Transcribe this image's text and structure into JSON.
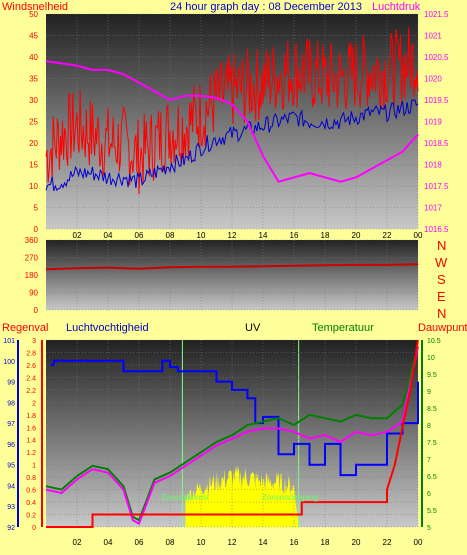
{
  "header": {
    "title": "24 hour graph day : 08 December 2013",
    "left_label": "Windsnelheid",
    "right_label": "Luchtdruk"
  },
  "wind_dir_letters": [
    "N",
    "W",
    "S",
    "E",
    "N"
  ],
  "lower_labels": {
    "rain": "Regenval",
    "humidity": "Luchtvochtigheid",
    "uv": "UV",
    "temp": "Temperatuur",
    "dew": "Dauwpunt",
    "sunrise": "Zonsopkomst",
    "sunset": "Zonsondergang"
  },
  "colors": {
    "background": "#ffff99",
    "wind_gust": "#ff0000",
    "wind_avg": "#0000cc",
    "pressure": "#ff00ff",
    "title": "#0000cc",
    "left_axis": "#ff0000",
    "humidity": "#0000ff",
    "uv": "#ffff00",
    "temperature": "#008000",
    "dewpoint": "#ff00ff",
    "rain": "#ff0000",
    "sun_marker": "#80ff80"
  },
  "chart_data": [
    {
      "type": "line",
      "name": "wind-pressure",
      "x_ticks": [
        "02",
        "04",
        "06",
        "08",
        "10",
        "12",
        "14",
        "16",
        "18",
        "20",
        "22",
        "00"
      ],
      "x_range": [
        0,
        24
      ],
      "y_left": {
        "label": "Windsnelheid",
        "ylim": [
          0,
          50
        ],
        "ticks": [
          0,
          5,
          10,
          15,
          20,
          25,
          30,
          35,
          40,
          45,
          50
        ]
      },
      "y_right": {
        "label": "Luchtdruk",
        "ylim": [
          1016.5,
          1021.5
        ],
        "ticks": [
          "1016.5",
          "1017",
          "1017.5",
          "1018",
          "1018.5",
          "1019",
          "1019.5",
          "1020",
          "1020.5",
          "1021",
          "1021.5"
        ]
      },
      "series": [
        {
          "name": "Windsnelheid",
          "axis": "left",
          "x": [
            0,
            1,
            2,
            3,
            4,
            5,
            6,
            7,
            8,
            9,
            10,
            11,
            12,
            13,
            14,
            15,
            16,
            17,
            18,
            19,
            20,
            21,
            22,
            23,
            24
          ],
          "y": [
            17,
            22,
            24,
            22,
            20,
            20,
            17,
            20,
            23,
            24,
            27,
            30,
            32,
            33,
            34,
            36,
            37,
            36,
            35,
            35,
            36,
            37,
            37,
            38,
            40
          ]
        },
        {
          "name": "Gemiddeld",
          "axis": "left",
          "x": [
            0,
            1,
            2,
            3,
            4,
            5,
            6,
            7,
            8,
            9,
            10,
            11,
            12,
            13,
            14,
            15,
            16,
            17,
            18,
            19,
            20,
            21,
            22,
            23,
            24
          ],
          "y": [
            10,
            11,
            13,
            13,
            12,
            12,
            11,
            13,
            15,
            16,
            19,
            21,
            22,
            23,
            24,
            25,
            26,
            25,
            25,
            25,
            26,
            27,
            27,
            28,
            29
          ]
        },
        {
          "name": "Luchtdruk",
          "axis": "right",
          "x": [
            0,
            1,
            2,
            3,
            4,
            5,
            6,
            7,
            8,
            9,
            10,
            11,
            12,
            13,
            14,
            15,
            16,
            17,
            18,
            19,
            20,
            21,
            22,
            23,
            24
          ],
          "y": [
            1020.4,
            1020.35,
            1020.3,
            1020.2,
            1020.2,
            1020.1,
            1019.9,
            1019.7,
            1019.5,
            1019.6,
            1019.6,
            1019.55,
            1019.4,
            1019.0,
            1018.2,
            1017.6,
            1017.7,
            1017.8,
            1017.7,
            1017.6,
            1017.7,
            1017.9,
            1018.1,
            1018.3,
            1018.7
          ]
        }
      ]
    },
    {
      "type": "line",
      "name": "wind-direction",
      "x_range": [
        0,
        24
      ],
      "ylim": [
        0,
        360
      ],
      "y_ticks": [
        0,
        90,
        180,
        270,
        360
      ],
      "series": [
        {
          "name": "Windrichting",
          "x": [
            0,
            2,
            4,
            6,
            8,
            10,
            12,
            14,
            16,
            18,
            20,
            22,
            24
          ],
          "y": [
            210,
            215,
            218,
            212,
            220,
            222,
            222,
            225,
            228,
            230,
            232,
            232,
            235
          ]
        }
      ]
    },
    {
      "type": "line",
      "name": "rain-humidity-uv-temp",
      "x_range": [
        0,
        24
      ],
      "y_rain": {
        "label": "Regenval",
        "ylim": [
          0,
          3
        ],
        "ticks": [
          "0",
          "0.2",
          "0.4",
          "0.6",
          "0.8",
          "1",
          "1.2",
          "1.4",
          "1.6",
          "1.8",
          "2",
          "2.2",
          "2.4",
          "2.6",
          "2.8",
          "3"
        ]
      },
      "y_humidity": {
        "label": "Luchtvochtigheid",
        "ylim": [
          92,
          101
        ],
        "ticks": [
          92,
          93,
          94,
          95,
          96,
          97,
          98,
          99,
          100,
          101
        ]
      },
      "y_temp": {
        "label": "Temperatuur",
        "ylim": [
          5,
          10.5
        ],
        "ticks": [
          "5",
          "5.5",
          "6",
          "6.5",
          "7",
          "7.5",
          "8",
          "8.5",
          "9",
          "9.5",
          "10",
          "10.5"
        ]
      },
      "sunrise": 8.8,
      "sunset": 16.3,
      "series": [
        {
          "name": "Luchtvochtigheid",
          "x": [
            0.3,
            0.5,
            1,
            2,
            3,
            4,
            5,
            6,
            7,
            7.5,
            8,
            8.5,
            9,
            10,
            11,
            12,
            13,
            13.5,
            14,
            15,
            16,
            17,
            18,
            19,
            20,
            21,
            22,
            23,
            24
          ],
          "y": [
            99.8,
            100,
            100,
            100,
            100,
            100,
            99.5,
            99.5,
            99.5,
            100,
            99.7,
            99.5,
            99.5,
            99.5,
            99,
            98.6,
            98.2,
            97,
            97.3,
            95.5,
            96,
            95,
            96,
            94.5,
            95,
            95,
            96.5,
            97,
            99
          ]
        },
        {
          "name": "UV",
          "x": [
            9,
            10,
            11,
            12,
            13,
            14,
            15,
            16,
            16.3
          ],
          "y": [
            0.6,
            0.8,
            0.9,
            1.0,
            1.0,
            0.9,
            0.9,
            0.8,
            0
          ]
        },
        {
          "name": "Temperatuur",
          "x": [
            0,
            1,
            2,
            3,
            4,
            5,
            5.6,
            6,
            6.5,
            7,
            8,
            9,
            10,
            11,
            12,
            13,
            14,
            15,
            16,
            17,
            18,
            19,
            20,
            21,
            22,
            23,
            24
          ],
          "y": [
            6.2,
            6.1,
            6.5,
            6.8,
            6.7,
            6.2,
            5.3,
            5.2,
            5.8,
            6.4,
            6.6,
            6.9,
            7.2,
            7.5,
            7.7,
            8.0,
            8.1,
            8.2,
            8.0,
            8.3,
            8.2,
            8.1,
            8.3,
            8.2,
            8.2,
            8.6,
            10.3
          ]
        },
        {
          "name": "Dauwpunt",
          "x": [
            0,
            1,
            2,
            3,
            4,
            5,
            5.6,
            6,
            6.5,
            7,
            8,
            9,
            10,
            11,
            12,
            13,
            14,
            15,
            16,
            17,
            18,
            19,
            20,
            21,
            22,
            23,
            24
          ],
          "y": [
            6.1,
            6.0,
            6.4,
            6.7,
            6.6,
            6.1,
            5.2,
            5.1,
            5.7,
            6.3,
            6.5,
            6.8,
            7.1,
            7.4,
            7.6,
            7.8,
            7.9,
            7.9,
            7.8,
            7.6,
            7.7,
            7.5,
            7.8,
            7.7,
            7.8,
            8.1,
            10.3
          ]
        },
        {
          "name": "Regenval",
          "x": [
            0,
            3,
            3,
            16.5,
            16.5,
            22,
            22,
            22.5,
            23,
            23.5,
            24
          ],
          "y": [
            0,
            0,
            0.2,
            0.2,
            0.4,
            0.4,
            0.6,
            1.0,
            1.6,
            2.2,
            3.0
          ]
        }
      ]
    }
  ]
}
